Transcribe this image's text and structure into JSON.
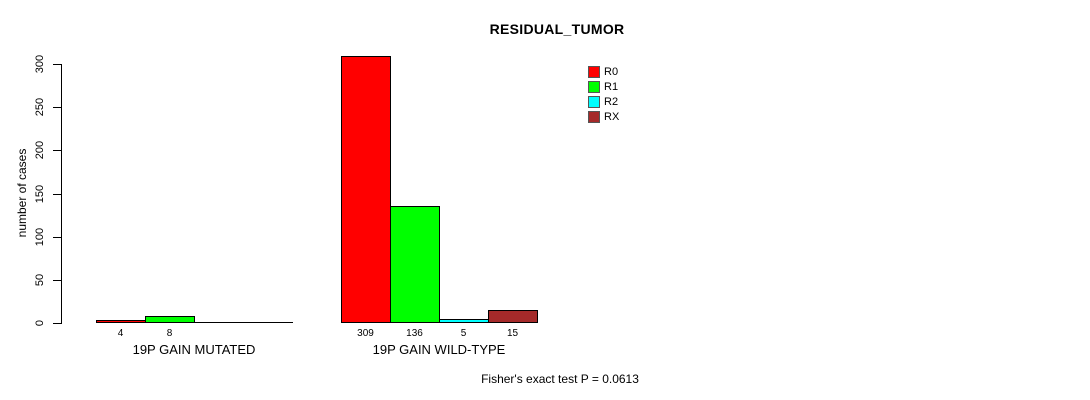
{
  "chart_data": {
    "type": "bar",
    "title": "RESIDUAL_TUMOR",
    "ylabel": "number of cases",
    "ylim": [
      0,
      300
    ],
    "yticks": [
      0,
      50,
      100,
      150,
      200,
      250,
      300
    ],
    "grid": false,
    "legend_position": "top-right",
    "series": [
      {
        "name": "R0",
        "color": "#FF0000"
      },
      {
        "name": "R1",
        "color": "#00FF00"
      },
      {
        "name": "R2",
        "color": "#00FFFF"
      },
      {
        "name": "RX",
        "color": "#A52A2A"
      }
    ],
    "categories": [
      "19P GAIN MUTATED",
      "19P GAIN WILD-TYPE"
    ],
    "groups": [
      {
        "label": "19P GAIN MUTATED",
        "values": [
          4,
          8,
          0,
          0
        ],
        "value_labels": [
          "4",
          "8",
          "",
          ""
        ]
      },
      {
        "label": "19P GAIN WILD-TYPE",
        "values": [
          309,
          136,
          5,
          15
        ],
        "value_labels": [
          "309",
          "136",
          "5",
          "15"
        ]
      }
    ],
    "annotation": "Fisher's exact test P = 0.0613"
  }
}
